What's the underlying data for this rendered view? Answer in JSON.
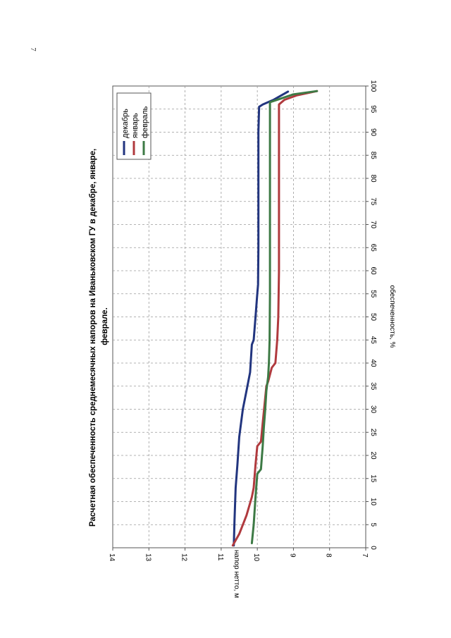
{
  "page": {
    "number": "7"
  },
  "chart_data": {
    "type": "line",
    "orientation": "rotated-90-clockwise",
    "title_lines": [
      "Расчетная обеспеченность среднемесячных напоров на Иваньковском ГУ в декабре, январе,",
      "феврале."
    ],
    "xlabel": "обеспеченность, %",
    "ylabel": "напор нетто, м",
    "xlim": [
      0,
      100
    ],
    "ylim": [
      7,
      14
    ],
    "x_ticks": [
      0,
      5,
      10,
      15,
      20,
      25,
      30,
      35,
      40,
      45,
      50,
      55,
      60,
      65,
      70,
      75,
      80,
      85,
      90,
      95,
      100
    ],
    "y_ticks": [
      7,
      8,
      9,
      10,
      11,
      12,
      13,
      14
    ],
    "grid": true,
    "legend_position": "top-left",
    "series": [
      {
        "name": "декабрь",
        "color": "#22357f",
        "points": [
          [
            0.5,
            10.65
          ],
          [
            6,
            10.63
          ],
          [
            13,
            10.6
          ],
          [
            18,
            10.55
          ],
          [
            24,
            10.5
          ],
          [
            30,
            10.4
          ],
          [
            34,
            10.3
          ],
          [
            38,
            10.2
          ],
          [
            44,
            10.15
          ],
          [
            45,
            10.1
          ],
          [
            50,
            10.05
          ],
          [
            55,
            10.0
          ],
          [
            57,
            9.98
          ],
          [
            65,
            9.97
          ],
          [
            80,
            9.97
          ],
          [
            90,
            9.97
          ],
          [
            95.5,
            9.95
          ],
          [
            96,
            9.85
          ],
          [
            97,
            9.55
          ],
          [
            98.8,
            9.15
          ]
        ]
      },
      {
        "name": "январь",
        "color": "#b03a3e",
        "points": [
          [
            0.5,
            10.68
          ],
          [
            3,
            10.5
          ],
          [
            7,
            10.3
          ],
          [
            11,
            10.15
          ],
          [
            13,
            10.1
          ],
          [
            18,
            10.05
          ],
          [
            22,
            10.0
          ],
          [
            23,
            9.9
          ],
          [
            27,
            9.85
          ],
          [
            31,
            9.8
          ],
          [
            35,
            9.75
          ],
          [
            36,
            9.7
          ],
          [
            39,
            9.6
          ],
          [
            40,
            9.5
          ],
          [
            45,
            9.45
          ],
          [
            50,
            9.42
          ],
          [
            60,
            9.4
          ],
          [
            80,
            9.4
          ],
          [
            96,
            9.4
          ],
          [
            97,
            9.25
          ],
          [
            98,
            8.9
          ],
          [
            98.9,
            8.35
          ]
        ]
      },
      {
        "name": "февраль",
        "color": "#3d7a45",
        "points": [
          [
            1,
            10.15
          ],
          [
            5,
            10.1
          ],
          [
            11,
            10.05
          ],
          [
            16,
            10.0
          ],
          [
            17,
            9.9
          ],
          [
            22,
            9.85
          ],
          [
            26,
            9.82
          ],
          [
            30,
            9.78
          ],
          [
            34,
            9.75
          ],
          [
            37,
            9.7
          ],
          [
            40,
            9.68
          ],
          [
            45,
            9.66
          ],
          [
            55,
            9.65
          ],
          [
            70,
            9.65
          ],
          [
            85,
            9.65
          ],
          [
            96.5,
            9.65
          ],
          [
            97,
            9.45
          ],
          [
            98.2,
            9.0
          ],
          [
            98.9,
            8.35
          ]
        ]
      }
    ]
  }
}
